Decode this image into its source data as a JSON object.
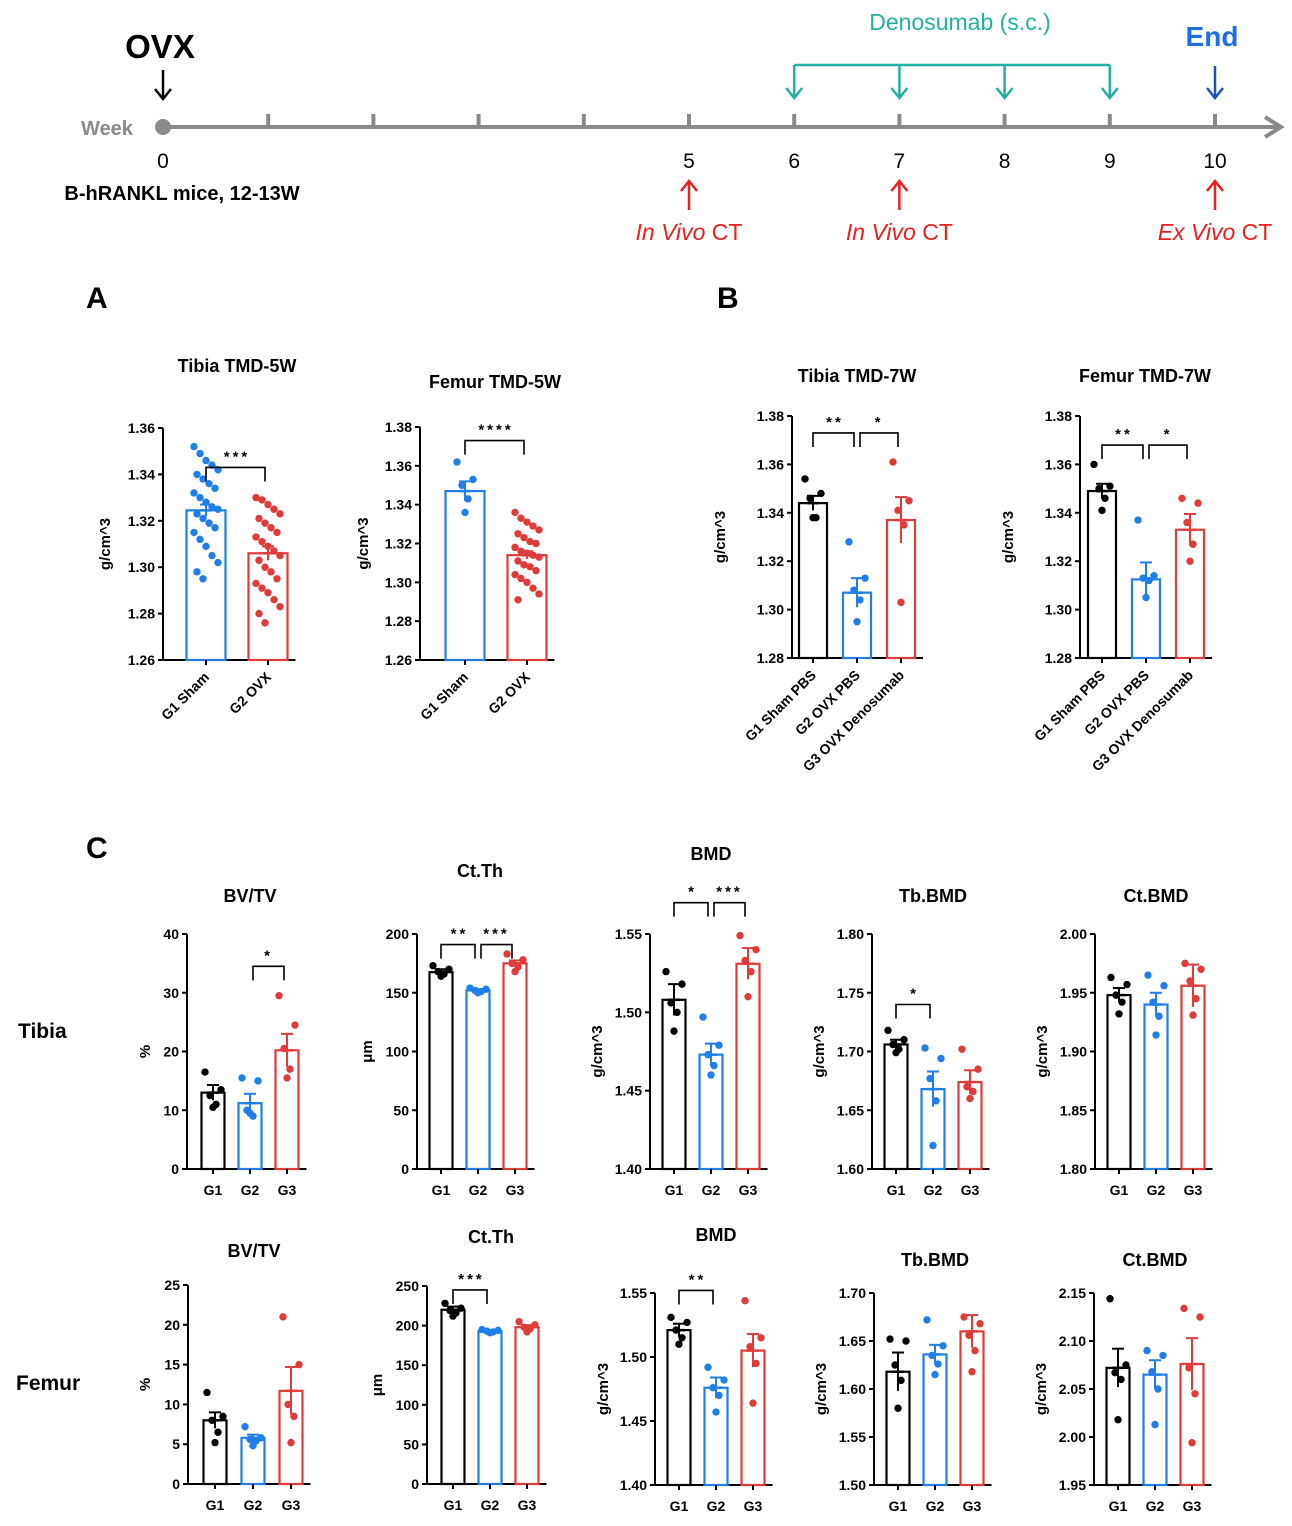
{
  "colors": {
    "sham": "#000000",
    "ovx": "#1f7ee8",
    "den": "#e03b3b",
    "timeline_axis": "#8a8a8a",
    "denosumab": "#23b0a0",
    "end": "#1b6fe3",
    "end_arrow": "#1d4fbf",
    "ct": "#e8201f"
  },
  "timeline": {
    "start_label": "OVX",
    "week_label": "Week",
    "mice_label": "B-hRANKL mice, 12-13W",
    "weeks": [
      "0",
      "1",
      "2",
      "3",
      "4",
      "5",
      "6",
      "7",
      "8",
      "9",
      "10"
    ],
    "shown_week_numbers": [
      "0",
      "5",
      "6",
      "7",
      "8",
      "9",
      "10"
    ],
    "denosumab_label": "Denosumab (s.c.)",
    "denosumab_weeks": [
      6,
      7,
      8,
      9
    ],
    "end_label": "End",
    "ct_events": [
      {
        "week": 5,
        "italic": "In Vivo",
        "rest": " CT"
      },
      {
        "week": 7,
        "italic": "In Vivo",
        "rest": " CT"
      },
      {
        "week": 10,
        "italic": "Ex Vivo",
        "rest": " CT"
      }
    ]
  },
  "panel_letters": {
    "a": "A",
    "b": "B",
    "c": "C"
  },
  "row_labels": {
    "tibia": "Tibia",
    "femur": "Femur"
  },
  "chart_data": [
    {
      "id": "a_tibia",
      "type": "bar",
      "title": "Tibia TMD-5W",
      "ylabel": "g/cm^3",
      "ylim": [
        1.26,
        1.36
      ],
      "yticks": [
        1.26,
        1.28,
        1.3,
        1.32,
        1.34,
        1.36
      ],
      "ytick_labels": [
        "1.26",
        "1.28",
        "1.30",
        "1.32",
        "1.34",
        "1.36"
      ],
      "categories": [
        "G1 Sham",
        "G2 OVX"
      ],
      "series": [
        {
          "color": "#1f7ee8",
          "mean": 1.3245,
          "sem": 0.0025,
          "points": [
            1.352,
            1.349,
            1.346,
            1.344,
            1.342,
            1.34,
            1.338,
            1.336,
            1.334,
            1.332,
            1.33,
            1.328,
            1.326,
            1.325,
            1.323,
            1.321,
            1.319,
            1.317,
            1.315,
            1.312,
            1.309,
            1.305,
            1.302,
            1.298,
            1.295
          ]
        },
        {
          "color": "#e03b3b",
          "mean": 1.306,
          "sem": 0.003,
          "points": [
            1.33,
            1.329,
            1.327,
            1.325,
            1.323,
            1.321,
            1.319,
            1.317,
            1.315,
            1.313,
            1.311,
            1.309,
            1.307,
            1.305,
            1.303,
            1.3,
            1.298,
            1.295,
            1.293,
            1.291,
            1.289,
            1.286,
            1.283,
            1.28,
            1.276
          ]
        }
      ],
      "sig": [
        {
          "from": 0,
          "to": 1,
          "label": "***",
          "y": 1.343
        }
      ]
    },
    {
      "id": "a_femur",
      "type": "bar",
      "title": "Femur TMD-5W",
      "ylabel": "g/cm^3",
      "ylim": [
        1.26,
        1.38
      ],
      "yticks": [
        1.26,
        1.28,
        1.3,
        1.32,
        1.34,
        1.36,
        1.38
      ],
      "ytick_labels": [
        "1.26",
        "1.28",
        "1.30",
        "1.32",
        "1.34",
        "1.36",
        "1.38"
      ],
      "categories": [
        "G1 Sham",
        "G2 OVX"
      ],
      "series": [
        {
          "color": "#1f7ee8",
          "mean": 1.347,
          "sem": 0.005,
          "points": [
            1.362,
            1.353,
            1.35,
            1.343,
            1.336
          ]
        },
        {
          "color": "#e03b3b",
          "mean": 1.314,
          "sem": 0.002,
          "points": [
            1.336,
            1.333,
            1.331,
            1.329,
            1.327,
            1.325,
            1.323,
            1.321,
            1.32,
            1.318,
            1.316,
            1.315,
            1.314,
            1.313,
            1.311,
            1.309,
            1.308,
            1.306,
            1.304,
            1.302,
            1.3,
            1.297,
            1.294,
            1.291
          ]
        }
      ],
      "sig": [
        {
          "from": 0,
          "to": 1,
          "label": "****",
          "y": 1.373
        }
      ]
    },
    {
      "id": "b_tibia",
      "type": "bar",
      "title": "Tibia TMD-7W",
      "ylabel": "g/cm^3",
      "ylim": [
        1.28,
        1.38
      ],
      "yticks": [
        1.28,
        1.3,
        1.32,
        1.34,
        1.36,
        1.38
      ],
      "ytick_labels": [
        "1.28",
        "1.30",
        "1.32",
        "1.34",
        "1.36",
        "1.38"
      ],
      "categories": [
        "G1 Sham PBS",
        "G2 OVX PBS",
        "G3 OVX Denosumab"
      ],
      "series": [
        {
          "color": "#000000",
          "mean": 1.344,
          "sem": 0.003,
          "points": [
            1.354,
            1.348,
            1.346,
            1.338,
            1.338
          ]
        },
        {
          "color": "#1f7ee8",
          "mean": 1.307,
          "sem": 0.006,
          "points": [
            1.328,
            1.313,
            1.308,
            1.304,
            1.295
          ]
        },
        {
          "color": "#e03b3b",
          "mean": 1.337,
          "sem": 0.0095,
          "points": [
            1.361,
            1.345,
            1.341,
            1.335,
            1.303
          ]
        }
      ],
      "sig": [
        {
          "from": 0,
          "to": 1,
          "label": "**",
          "y": 1.373
        },
        {
          "from": 1,
          "to": 2,
          "label": "*",
          "y": 1.373
        }
      ]
    },
    {
      "id": "b_femur",
      "type": "bar",
      "title": "Femur TMD-7W",
      "ylabel": "g/cm^3",
      "ylim": [
        1.28,
        1.38
      ],
      "yticks": [
        1.28,
        1.3,
        1.32,
        1.34,
        1.36,
        1.38
      ],
      "ytick_labels": [
        "1.28",
        "1.30",
        "1.32",
        "1.34",
        "1.36",
        "1.38"
      ],
      "categories": [
        "G1 Sham PBS",
        "G2 OVX PBS",
        "G3 OVX Denosumab"
      ],
      "series": [
        {
          "color": "#000000",
          "mean": 1.349,
          "sem": 0.003,
          "points": [
            1.36,
            1.351,
            1.35,
            1.346,
            1.341
          ]
        },
        {
          "color": "#1f7ee8",
          "mean": 1.3125,
          "sem": 0.007,
          "points": [
            1.337,
            1.314,
            1.313,
            1.312,
            1.305
          ]
        },
        {
          "color": "#e03b3b",
          "mean": 1.333,
          "sem": 0.0065,
          "points": [
            1.346,
            1.344,
            1.336,
            1.327,
            1.32
          ]
        }
      ],
      "sig": [
        {
          "from": 0,
          "to": 1,
          "label": "**",
          "y": 1.368
        },
        {
          "from": 1,
          "to": 2,
          "label": "*",
          "y": 1.368
        }
      ]
    },
    {
      "id": "c_tibia_bvtv",
      "type": "bar",
      "title": "BV/TV",
      "ylabel": "%",
      "ylim": [
        0,
        40
      ],
      "yticks": [
        0,
        10,
        20,
        30,
        40
      ],
      "ytick_labels": [
        "0",
        "10",
        "20",
        "30",
        "40"
      ],
      "categories": [
        "G1",
        "G2",
        "G3"
      ],
      "series": [
        {
          "color": "#000000",
          "mean": 13.0,
          "sem": 1.3,
          "points": [
            16.5,
            13.5,
            12.5,
            11.0,
            10.5
          ]
        },
        {
          "color": "#1f7ee8",
          "mean": 11.2,
          "sem": 1.6,
          "points": [
            15.5,
            15.0,
            10.0,
            9.0,
            9.5
          ]
        },
        {
          "color": "#e03b3b",
          "mean": 20.2,
          "sem": 2.8,
          "points": [
            29.5,
            24.5,
            20.5,
            17.0,
            15.5
          ]
        }
      ],
      "sig": [
        {
          "from": 1,
          "to": 2,
          "label": "*",
          "y": 34.5
        }
      ]
    },
    {
      "id": "c_tibia_ctth",
      "type": "bar",
      "title": "Ct.Th",
      "ylabel": "μm",
      "ylim": [
        0,
        200
      ],
      "yticks": [
        0,
        50,
        100,
        150,
        200
      ],
      "ytick_labels": [
        "0",
        "50",
        "100",
        "150",
        "200"
      ],
      "categories": [
        "G1",
        "G2",
        "G3"
      ],
      "series": [
        {
          "color": "#000000",
          "mean": 167.5,
          "sem": 2.5,
          "points": [
            173,
            170,
            168,
            166,
            164
          ]
        },
        {
          "color": "#1f7ee8",
          "mean": 152,
          "sem": 1.0,
          "points": [
            154,
            153,
            152,
            151,
            150
          ]
        },
        {
          "color": "#e03b3b",
          "mean": 175,
          "sem": 2.5,
          "points": [
            183,
            178,
            175,
            172,
            168
          ]
        }
      ],
      "sig": [
        {
          "from": 0,
          "to": 1,
          "label": "**",
          "y": 191
        },
        {
          "from": 1,
          "to": 2,
          "label": "***",
          "y": 191
        }
      ]
    },
    {
      "id": "c_tibia_bmd",
      "type": "bar",
      "title": "BMD",
      "ylabel": "g/cm^3",
      "ylim": [
        1.4,
        1.55
      ],
      "yticks": [
        1.4,
        1.45,
        1.5,
        1.55
      ],
      "ytick_labels": [
        "1.40",
        "1.45",
        "1.50",
        "1.55"
      ],
      "categories": [
        "G1",
        "G2",
        "G3"
      ],
      "series": [
        {
          "color": "#000000",
          "mean": 1.508,
          "sem": 0.01,
          "points": [
            1.526,
            1.518,
            1.506,
            1.5,
            1.488
          ]
        },
        {
          "color": "#1f7ee8",
          "mean": 1.473,
          "sem": 0.007,
          "points": [
            1.497,
            1.479,
            1.473,
            1.466,
            1.46
          ]
        },
        {
          "color": "#e03b3b",
          "mean": 1.531,
          "sem": 0.01,
          "points": [
            1.549,
            1.54,
            1.533,
            1.526,
            1.51
          ]
        }
      ],
      "sig": [
        {
          "from": 0,
          "to": 1,
          "label": "*",
          "y": 1.57
        },
        {
          "from": 1,
          "to": 2,
          "label": "***",
          "y": 1.57
        }
      ]
    },
    {
      "id": "c_tibia_tbbmd",
      "type": "bar",
      "title": "Tb.BMD",
      "ylabel": "g/cm^3",
      "ylim": [
        1.6,
        1.8
      ],
      "yticks": [
        1.6,
        1.65,
        1.7,
        1.75,
        1.8
      ],
      "ytick_labels": [
        "1.60",
        "1.65",
        "1.70",
        "1.75",
        "1.80"
      ],
      "categories": [
        "G1",
        "G2",
        "G3"
      ],
      "series": [
        {
          "color": "#000000",
          "mean": 1.706,
          "sem": 0.004,
          "points": [
            1.718,
            1.71,
            1.706,
            1.702,
            1.699
          ]
        },
        {
          "color": "#1f7ee8",
          "mean": 1.668,
          "sem": 0.015,
          "points": [
            1.703,
            1.694,
            1.677,
            1.658,
            1.62
          ]
        },
        {
          "color": "#e03b3b",
          "mean": 1.674,
          "sem": 0.01,
          "points": [
            1.702,
            1.685,
            1.67,
            1.666,
            1.66
          ]
        }
      ],
      "sig": [
        {
          "from": 0,
          "to": 1,
          "label": "*",
          "y": 1.74
        }
      ]
    },
    {
      "id": "c_tibia_ctbmd",
      "type": "bar",
      "title": "Ct.BMD",
      "ylabel": "g/cm^3",
      "ylim": [
        1.8,
        2.0
      ],
      "yticks": [
        1.8,
        1.85,
        1.9,
        1.95,
        2.0
      ],
      "ytick_labels": [
        "1.80",
        "1.85",
        "1.90",
        "1.95",
        "2.00"
      ],
      "categories": [
        "G1",
        "G2",
        "G3"
      ],
      "series": [
        {
          "color": "#000000",
          "mean": 1.948,
          "sem": 0.006,
          "points": [
            1.963,
            1.957,
            1.948,
            1.942,
            1.932
          ]
        },
        {
          "color": "#1f7ee8",
          "mean": 1.94,
          "sem": 0.01,
          "points": [
            1.965,
            1.956,
            1.942,
            1.93,
            1.914
          ]
        },
        {
          "color": "#e03b3b",
          "mean": 1.956,
          "sem": 0.018,
          "points": [
            1.975,
            1.97,
            1.96,
            1.945,
            1.931
          ]
        }
      ],
      "sig": []
    },
    {
      "id": "c_femur_bvtv",
      "type": "bar",
      "title": "BV/TV",
      "ylabel": "%",
      "ylim": [
        0,
        25
      ],
      "yticks": [
        0,
        5,
        10,
        15,
        20,
        25
      ],
      "ytick_labels": [
        "0",
        "5",
        "10",
        "15",
        "20",
        "25"
      ],
      "categories": [
        "G1",
        "G2",
        "G3"
      ],
      "series": [
        {
          "color": "#000000",
          "mean": 8.0,
          "sem": 1.0,
          "points": [
            11.5,
            8.5,
            8.0,
            6.5,
            5.2
          ]
        },
        {
          "color": "#1f7ee8",
          "mean": 5.8,
          "sem": 0.4,
          "points": [
            7.2,
            5.8,
            5.6,
            5.4,
            4.8
          ]
        },
        {
          "color": "#e03b3b",
          "mean": 11.7,
          "sem": 3.0,
          "points": [
            21.0,
            15.0,
            10.0,
            8.5,
            5.2
          ]
        }
      ],
      "sig": []
    },
    {
      "id": "c_femur_ctth",
      "type": "bar",
      "title": "Ct.Th",
      "ylabel": "μm",
      "ylim": [
        0,
        250
      ],
      "yticks": [
        0,
        50,
        100,
        150,
        200,
        250
      ],
      "ytick_labels": [
        "0",
        "50",
        "100",
        "150",
        "200",
        "250"
      ],
      "categories": [
        "G1",
        "G2",
        "G3"
      ],
      "series": [
        {
          "color": "#000000",
          "mean": 220,
          "sem": 4.0,
          "points": [
            228,
            222,
            219,
            216,
            212
          ]
        },
        {
          "color": "#1f7ee8",
          "mean": 193,
          "sem": 1.0,
          "points": [
            195,
            194,
            193,
            192,
            191
          ]
        },
        {
          "color": "#e03b3b",
          "mean": 198,
          "sem": 2.5,
          "points": [
            205,
            201,
            198,
            196,
            192
          ]
        }
      ],
      "sig": [
        {
          "from": 0,
          "to": 1,
          "label": "***",
          "y": 245
        }
      ]
    },
    {
      "id": "c_femur_bmd",
      "type": "bar",
      "title": "BMD",
      "ylabel": "g/cm^3",
      "ylim": [
        1.4,
        1.55
      ],
      "yticks": [
        1.4,
        1.45,
        1.5,
        1.55
      ],
      "ytick_labels": [
        "1.40",
        "1.45",
        "1.50",
        "1.55"
      ],
      "categories": [
        "G1",
        "G2",
        "G3"
      ],
      "series": [
        {
          "color": "#000000",
          "mean": 1.521,
          "sem": 0.005,
          "points": [
            1.531,
            1.527,
            1.521,
            1.515,
            1.51
          ]
        },
        {
          "color": "#1f7ee8",
          "mean": 1.476,
          "sem": 0.008,
          "points": [
            1.492,
            1.482,
            1.476,
            1.47,
            1.457
          ]
        },
        {
          "color": "#e03b3b",
          "mean": 1.505,
          "sem": 0.013,
          "points": [
            1.544,
            1.515,
            1.508,
            1.495,
            1.464
          ]
        }
      ],
      "sig": [
        {
          "from": 0,
          "to": 1,
          "label": "**",
          "y": 1.552
        }
      ]
    },
    {
      "id": "c_femur_tbbmd",
      "type": "bar",
      "title": "Tb.BMD",
      "ylabel": "g/cm^3",
      "ylim": [
        1.5,
        1.7
      ],
      "yticks": [
        1.5,
        1.55,
        1.6,
        1.65,
        1.7
      ],
      "ytick_labels": [
        "1.50",
        "1.55",
        "1.60",
        "1.65",
        "1.70"
      ],
      "categories": [
        "G1",
        "G2",
        "G3"
      ],
      "series": [
        {
          "color": "#000000",
          "mean": 1.618,
          "sem": 0.02,
          "points": [
            1.652,
            1.65,
            1.625,
            1.609,
            1.58
          ]
        },
        {
          "color": "#1f7ee8",
          "mean": 1.636,
          "sem": 0.01,
          "points": [
            1.672,
            1.645,
            1.635,
            1.626,
            1.615
          ]
        },
        {
          "color": "#e03b3b",
          "mean": 1.66,
          "sem": 0.017,
          "points": [
            1.675,
            1.668,
            1.656,
            1.64,
            1.618
          ]
        }
      ],
      "sig": []
    },
    {
      "id": "c_femur_ctbmd",
      "type": "bar",
      "title": "Ct.BMD",
      "ylabel": "g/cm^3",
      "ylim": [
        1.95,
        2.15
      ],
      "yticks": [
        1.95,
        2.0,
        2.05,
        2.1,
        2.15
      ],
      "ytick_labels": [
        "1.95",
        "2.00",
        "2.05",
        "2.10",
        "2.15"
      ],
      "categories": [
        "G1",
        "G2",
        "G3"
      ],
      "series": [
        {
          "color": "#000000",
          "mean": 2.072,
          "sem": 0.02,
          "points": [
            2.144,
            2.075,
            2.067,
            2.06,
            2.018
          ]
        },
        {
          "color": "#1f7ee8",
          "mean": 2.065,
          "sem": 0.015,
          "points": [
            2.09,
            2.085,
            2.068,
            2.05,
            2.013
          ]
        },
        {
          "color": "#e03b3b",
          "mean": 2.076,
          "sem": 0.027,
          "points": [
            2.134,
            2.125,
            2.072,
            2.045,
            1.994
          ]
        }
      ],
      "sig": []
    }
  ]
}
